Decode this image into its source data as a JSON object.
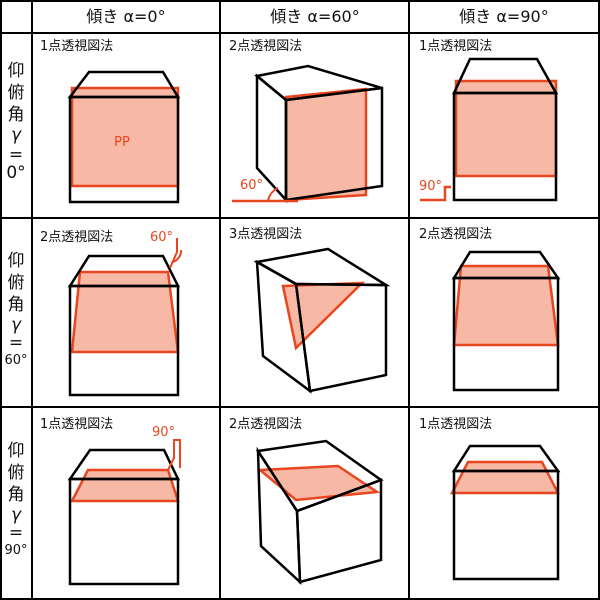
{
  "columns": [
    "傾き α=0°",
    "傾き α=60°",
    "傾き α=90°"
  ],
  "rows": [
    {
      "label_lines": [
        "仰",
        "俯",
        "角",
        "γ",
        "=",
        "0°"
      ]
    },
    {
      "label_lines": [
        "仰",
        "俯",
        "角",
        "γ",
        "=",
        "60°"
      ]
    },
    {
      "label_lines": [
        "仰",
        "俯",
        "角",
        "γ",
        "=",
        "90°"
      ]
    }
  ],
  "cells": [
    [
      "1点透視図法",
      "2点透視図法",
      "1点透視図法"
    ],
    [
      "2点透視図法",
      "3点透視図法",
      "2点透視図法"
    ],
    [
      "1点透視図法",
      "2点透視図法",
      "1点透視図法"
    ]
  ],
  "annotations": {
    "pp": "PP",
    "angle_60": "60°",
    "angle_90": "90°"
  },
  "colors": {
    "accent": "#e8461f",
    "fill": "#f7b9a6",
    "line": "#000000"
  }
}
